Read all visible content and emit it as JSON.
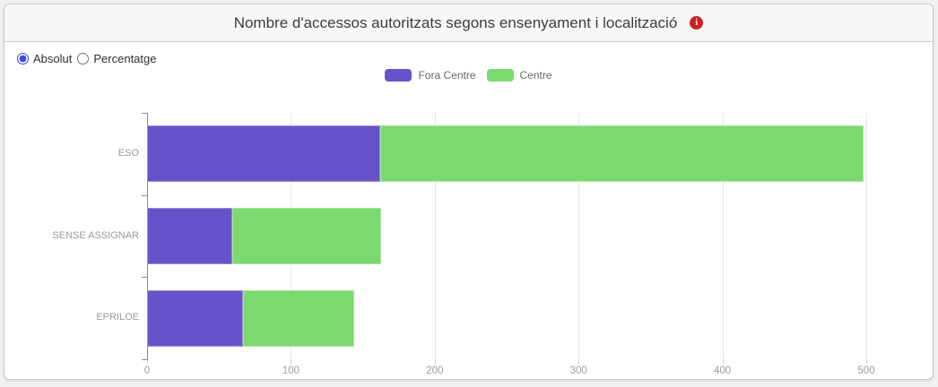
{
  "header": {
    "title": "Nombre d'accessos autoritzats segons ensenyament i localització",
    "info_icon": "i"
  },
  "controls": {
    "mode_options": [
      {
        "label": "Absolut",
        "selected": true
      },
      {
        "label": "Percentatge",
        "selected": false
      }
    ]
  },
  "legend": {
    "items": [
      {
        "label": "Fora Centre",
        "color": "#6554c9"
      },
      {
        "label": "Centre",
        "color": "#7cd96f"
      }
    ]
  },
  "chart_data": {
    "type": "bar",
    "orientation": "horizontal",
    "stacked": true,
    "title": "Nombre d'accessos autoritzats segons ensenyament i localització",
    "categories": [
      "ESO",
      "SENSE ASSIGNAR",
      "EPRILOE"
    ],
    "series": [
      {
        "name": "Fora Centre",
        "color": "#6554c9",
        "values": [
          162,
          59,
          67
        ]
      },
      {
        "name": "Centre",
        "color": "#7cd96f",
        "values": [
          336,
          104,
          77
        ]
      }
    ],
    "totals": [
      498,
      163,
      144
    ],
    "x_ticks": [
      0,
      100,
      200,
      300,
      400,
      500
    ],
    "xlim": [
      0,
      543
    ],
    "grid": true,
    "legend_position": "top-center",
    "xlabel": "",
    "ylabel": ""
  },
  "colors": {
    "radio_accent": "#3a49e0",
    "info_badge": "#cc2127",
    "grid_line": "#e6e6f0",
    "axis_line": "#8a8a8a",
    "tick_label": "#9a9aa5",
    "category_label": "#98989e"
  }
}
